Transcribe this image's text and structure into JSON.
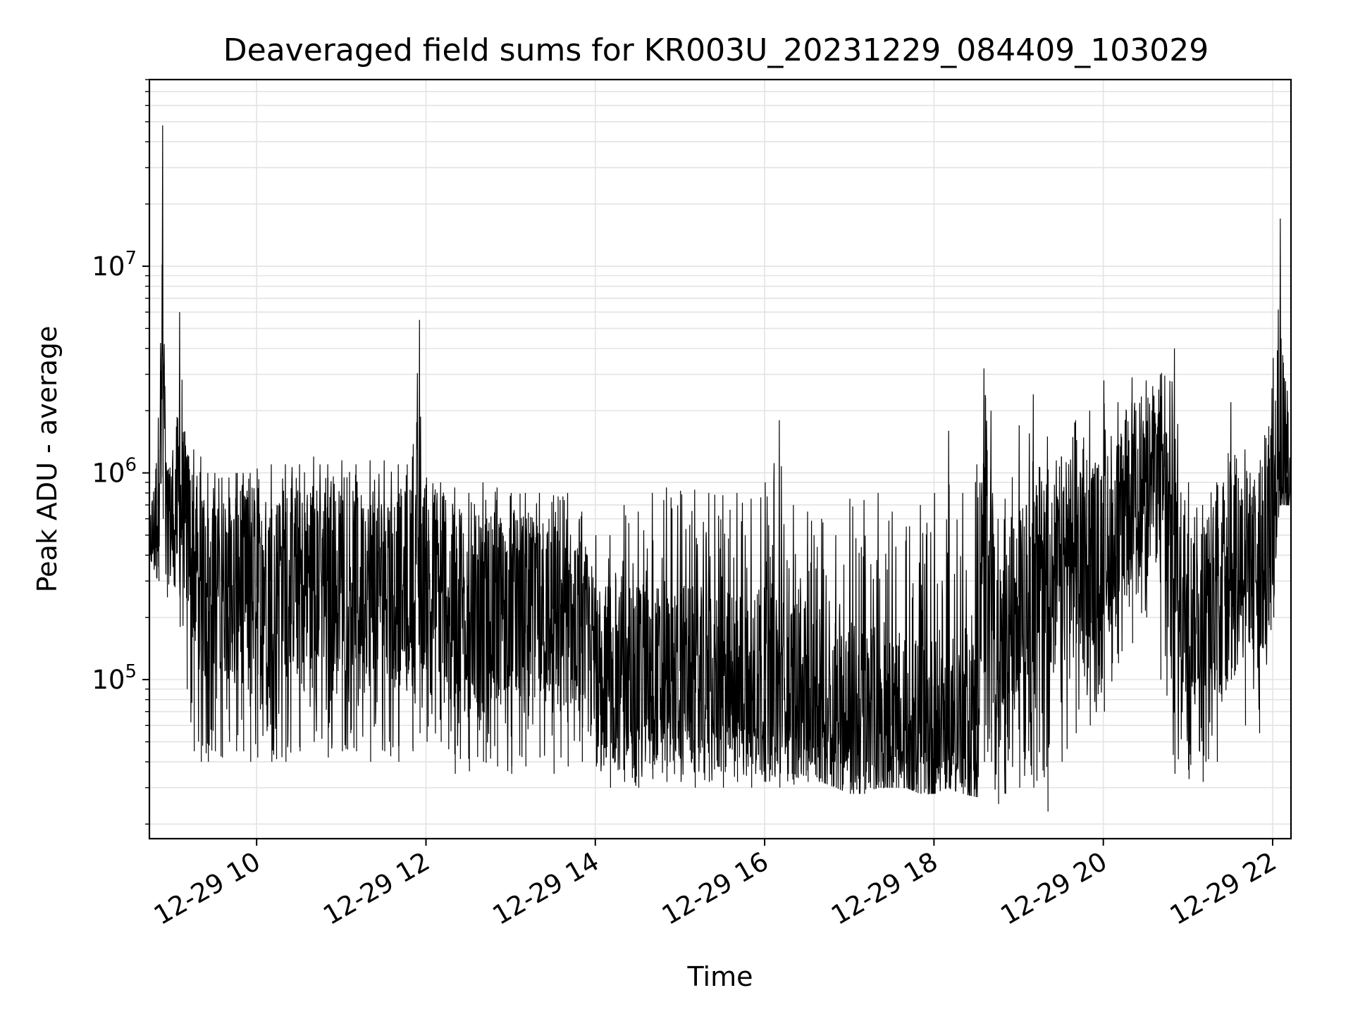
{
  "chart_data": {
    "type": "line",
    "title": "Deaveraged field sums for KR003U_20231229_084409_103029",
    "xlabel": "Time",
    "ylabel": "Peak ADU - average",
    "yscale": "log",
    "xlim": [
      "12-29 08:44",
      "12-29 22:13"
    ],
    "ylim": [
      17000,
      80000000
    ],
    "grid": true,
    "line_color": "#000000",
    "grid_color": "#e3e3e3",
    "x_ticks": [
      "12-29 10",
      "12-29 12",
      "12-29 14",
      "12-29 16",
      "12-29 18",
      "12-29 20",
      "12-29 22"
    ],
    "y_ticks": [
      {
        "base": "10",
        "exp": "5"
      },
      {
        "base": "10",
        "exp": "6"
      },
      {
        "base": "10",
        "exp": "7"
      }
    ],
    "series": [
      {
        "x": [
          "12-29 08:44",
          "12-29 08:50",
          "12-29 08:53",
          "12-29 08:56",
          "12-29 09:00",
          "12-29 09:05",
          "12-29 09:10",
          "12-29 09:15",
          "12-29 09:20",
          "12-29 09:25",
          "12-29 09:30",
          "12-29 09:35",
          "12-29 09:40",
          "12-29 09:45",
          "12-29 09:50",
          "12-29 09:55",
          "12-29 10:00",
          "12-29 10:10",
          "12-29 10:20",
          "12-29 10:30",
          "12-29 10:40",
          "12-29 10:50",
          "12-29 11:00",
          "12-29 11:10",
          "12-29 11:20",
          "12-29 11:30",
          "12-29 11:40",
          "12-29 11:50",
          "12-29 11:55",
          "12-29 12:00",
          "12-29 12:10",
          "12-29 12:20",
          "12-29 12:30",
          "12-29 12:40",
          "12-29 12:50",
          "12-29 13:00",
          "12-29 13:10",
          "12-29 13:20",
          "12-29 13:30",
          "12-29 13:40",
          "12-29 13:50",
          "12-29 14:00",
          "12-29 14:10",
          "12-29 14:20",
          "12-29 14:30",
          "12-29 14:40",
          "12-29 14:50",
          "12-29 15:00",
          "12-29 15:10",
          "12-29 15:20",
          "12-29 15:30",
          "12-29 15:40",
          "12-29 15:50",
          "12-29 16:00",
          "12-29 16:10",
          "12-29 16:20",
          "12-29 16:30",
          "12-29 16:40",
          "12-29 16:50",
          "12-29 17:00",
          "12-29 17:10",
          "12-29 17:20",
          "12-29 17:30",
          "12-29 17:40",
          "12-29 17:50",
          "12-29 18:00",
          "12-29 18:10",
          "12-29 18:20",
          "12-29 18:30",
          "12-29 18:35",
          "12-29 18:40",
          "12-29 18:45",
          "12-29 18:50",
          "12-29 19:00",
          "12-29 19:10",
          "12-29 19:20",
          "12-29 19:30",
          "12-29 19:40",
          "12-29 19:50",
          "12-29 20:00",
          "12-29 20:10",
          "12-29 20:20",
          "12-29 20:30",
          "12-29 20:40",
          "12-29 20:50",
          "12-29 21:00",
          "12-29 21:10",
          "12-29 21:20",
          "12-29 21:30",
          "12-29 21:40",
          "12-29 21:50",
          "12-29 22:00",
          "12-29 22:05",
          "12-29 22:10",
          "12-29 22:13"
        ],
        "high": [
          550000,
          1300000,
          48000000,
          1000000,
          1100000,
          6000000,
          1200000,
          1300000,
          1200000,
          1000000,
          1000000,
          950000,
          950000,
          1000000,
          1000000,
          1000000,
          1050000,
          1100000,
          1100000,
          1100000,
          1200000,
          1100000,
          1150000,
          1100000,
          1150000,
          1150000,
          1100000,
          1200000,
          5500000,
          950000,
          900000,
          850000,
          800000,
          900000,
          850000,
          800000,
          800000,
          800000,
          780000,
          800000,
          650000,
          500000,
          500000,
          700000,
          650000,
          800000,
          850000,
          820000,
          830000,
          800000,
          780000,
          800000,
          750000,
          900000,
          1800000,
          700000,
          650000,
          600000,
          500000,
          750000,
          740000,
          800000,
          650000,
          550000,
          700000,
          800000,
          1600000,
          800000,
          1100000,
          3200000,
          2000000,
          600000,
          750000,
          1700000,
          2400000,
          1500000,
          1200000,
          1800000,
          2000000,
          2800000,
          2200000,
          2900000,
          2800000,
          3000000,
          4000000,
          900000,
          700000,
          900000,
          2200000,
          1300000,
          1000000,
          3600000,
          17000000,
          2500000,
          1200000
        ],
        "low": [
          400000,
          300000,
          600000,
          250000,
          350000,
          180000,
          90000,
          45000,
          40000,
          40000,
          45000,
          42000,
          50000,
          45000,
          45000,
          40000,
          42000,
          40000,
          40000,
          45000,
          50000,
          42000,
          45000,
          45000,
          40000,
          45000,
          40000,
          45000,
          55000,
          50000,
          50000,
          35000,
          36000,
          40000,
          38000,
          35000,
          38000,
          42000,
          35000,
          38000,
          40000,
          38000,
          30000,
          32000,
          30000,
          33000,
          32000,
          32000,
          30000,
          32000,
          30000,
          32000,
          30000,
          32000,
          30000,
          31000,
          32000,
          32000,
          30000,
          28000,
          28000,
          30000,
          30000,
          30000,
          28000,
          28000,
          30000,
          28000,
          27000,
          40000,
          40000,
          25000,
          28000,
          30000,
          30000,
          23000,
          40000,
          55000,
          60000,
          70000,
          120000,
          150000,
          200000,
          100000,
          35000,
          33000,
          32000,
          40000,
          100000,
          60000,
          55000,
          200000,
          700000,
          700000,
          700000
        ],
        "mid": [
          480000,
          700000,
          4000000,
          700000,
          650000,
          700000,
          600000,
          400000,
          300000,
          250000,
          280000,
          300000,
          280000,
          300000,
          300000,
          280000,
          280000,
          300000,
          320000,
          300000,
          320000,
          300000,
          310000,
          300000,
          300000,
          310000,
          300000,
          320000,
          320000,
          300000,
          280000,
          250000,
          230000,
          220000,
          230000,
          240000,
          230000,
          230000,
          220000,
          200000,
          180000,
          120000,
          100000,
          100000,
          100000,
          110000,
          100000,
          110000,
          100000,
          100000,
          95000,
          100000,
          95000,
          100000,
          95000,
          90000,
          85000,
          80000,
          75000,
          70000,
          65000,
          65000,
          60000,
          60000,
          60000,
          60000,
          65000,
          65000,
          60000,
          600000,
          500000,
          100000,
          130000,
          250000,
          280000,
          300000,
          300000,
          350000,
          400000,
          450000,
          500000,
          800000,
          900000,
          1000000,
          500000,
          200000,
          250000,
          300000,
          500000,
          400000,
          350000,
          450000,
          1200000,
          1000000,
          900000
        ]
      }
    ]
  }
}
